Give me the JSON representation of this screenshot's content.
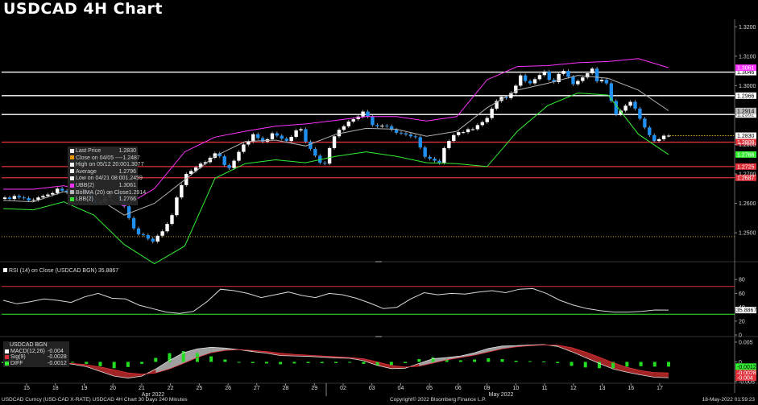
{
  "title": "USDCAD 4H Chart",
  "colors": {
    "background": "#000000",
    "candle_up": "#ffffff",
    "candle_down": "#1f8ff0",
    "bollinger_mid": "#b0b0b0",
    "bollinger_upper": "#ff33ff",
    "bollinger_lower": "#33ee33",
    "resistance_white": "#ffffff",
    "support_red": "#e0303a",
    "last_price_dotted": "#d0a020",
    "rsi_line": "#d8d8d8",
    "rsi_70": "#e0303a",
    "rsi_30": "#33ee33",
    "macd_line": "#aaaaaa",
    "signal_fill": "#c02a2a",
    "hist": "#22dd22"
  },
  "price_legend": [
    {
      "label": "Last Price",
      "value": "1.2830",
      "color": "#ffffff"
    },
    {
      "label": "Close on 04/05 ----",
      "value": "1.2487",
      "color": "#ff9a00"
    },
    {
      "label": "High on 05/12 20:00",
      "value": "1.3077",
      "color": "#ffffff"
    },
    {
      "label": "Average",
      "value": "1.2796",
      "color": "#ffffff"
    },
    {
      "label": "Low on 04/21 08:00",
      "value": "1.2459",
      "color": "#ffffff"
    },
    {
      "label": "UBB(2)",
      "value": "1.3061",
      "color": "#ff33ff"
    },
    {
      "label": "BollMA (20)  on Close",
      "value": "1.2914",
      "color": "#bbbbbb"
    },
    {
      "label": "LBB(2)",
      "value": "1.2766",
      "color": "#33ee33"
    }
  ],
  "rsi_label": "RSI (14)  on Close (USDCAD BGN)  35.8867",
  "macd_legend": {
    "header": "USDCAD BGN",
    "rows": [
      {
        "label": "MACD(12,26)",
        "value": "-0.004",
        "color": "#ffffff"
      },
      {
        "label": "Sig(9)",
        "value": "-0.0028",
        "color": "#e0303a"
      },
      {
        "label": "DIFF",
        "value": "-0.0012",
        "color": "#33ee33"
      }
    ]
  },
  "footer": {
    "left": "USDCAD Curncy (USD-CAD X-RATE) USDCAD 4H Chart 30 Days 240 Minutes",
    "mid": "Copyright© 2022 Bloomberg Finance L.P.",
    "right": "18-May-2022 01:59:23"
  },
  "chart_data": [
    {
      "type": "candlestick",
      "title": "USDCAD 4H Chart",
      "ylim": [
        1.241,
        1.322
      ],
      "y_ticks": [
        "1.2500",
        "1.2600",
        "1.2700",
        "1.2800",
        "1.2900",
        "1.3000",
        "1.3100",
        "1.3200"
      ],
      "x_day_labels": [
        "15",
        "18",
        "19",
        "20",
        "21",
        "22",
        "25",
        "26",
        "27",
        "28",
        "29",
        "02",
        "03",
        "04",
        "05",
        "06",
        "09",
        "10",
        "11",
        "12",
        "13",
        "16",
        "17"
      ],
      "x_month_labels": [
        "Apr 2022",
        "May 2022"
      ],
      "price_tags": [
        {
          "value": 1.3046,
          "text": "1.3046",
          "color": "#ffffff"
        },
        {
          "value": 1.3061,
          "text": "1.3061",
          "color": "#ff33ff"
        },
        {
          "value": 1.2966,
          "text": "1.2966",
          "color": "#ffffff"
        },
        {
          "value": 1.2902,
          "text": "1.2902",
          "color": "#ffffff"
        },
        {
          "value": 1.2914,
          "text": "1.2914",
          "color": "#bbbbbb"
        },
        {
          "value": 1.283,
          "text": "1.2830",
          "color": "#ffffff"
        },
        {
          "value": 1.2808,
          "text": "1.2808",
          "color": "#e0303a"
        },
        {
          "value": 1.2766,
          "text": "1.2766",
          "color": "#33ee33"
        },
        {
          "value": 1.2725,
          "text": "1.2725",
          "color": "#e0303a"
        },
        {
          "value": 1.2687,
          "text": "1.2687",
          "color": "#e0303a"
        }
      ],
      "horizontal_levels": [
        {
          "value": 1.3046,
          "color": "#ffffff",
          "style": "solid"
        },
        {
          "value": 1.2966,
          "color": "#ffffff",
          "style": "solid"
        },
        {
          "value": 1.2902,
          "color": "#ffffff",
          "style": "solid"
        },
        {
          "value": 1.2808,
          "color": "#e0303a",
          "style": "solid"
        },
        {
          "value": 1.2725,
          "color": "#e0303a",
          "style": "solid"
        },
        {
          "value": 1.2687,
          "color": "#e0303a",
          "style": "solid"
        },
        {
          "value": 1.2487,
          "color": "#d0a020",
          "style": "dotted"
        },
        {
          "value": 1.283,
          "color": "#d0a020",
          "style": "dotted-short"
        }
      ],
      "closes": [
        1.262,
        1.2615,
        1.2625,
        1.262,
        1.2618,
        1.261,
        1.2612,
        1.262,
        1.2625,
        1.263,
        1.2635,
        1.265,
        1.2643,
        1.2637,
        1.2632,
        1.264,
        1.265,
        1.2635,
        1.2615,
        1.26,
        1.2605,
        1.262,
        1.264,
        1.2635,
        1.2615,
        1.259,
        1.255,
        1.2515,
        1.2495,
        1.2492,
        1.248,
        1.247,
        1.249,
        1.2505,
        1.253,
        1.256,
        1.262,
        1.2662,
        1.27,
        1.271,
        1.2722,
        1.2735,
        1.274,
        1.2755,
        1.277,
        1.276,
        1.273,
        1.272,
        1.2745,
        1.2775,
        1.28,
        1.281,
        1.2835,
        1.2822,
        1.281,
        1.2818,
        1.2838,
        1.283,
        1.282,
        1.2812,
        1.2826,
        1.2848,
        1.2852,
        1.281,
        1.2785,
        1.2762,
        1.2738,
        1.2735,
        1.2788,
        1.2828,
        1.285,
        1.2862,
        1.2878,
        1.2886,
        1.2895,
        1.2912,
        1.2895,
        1.2866,
        1.2862,
        1.2864,
        1.2862,
        1.285,
        1.284,
        1.2838,
        1.2834,
        1.2828,
        1.2825,
        1.279,
        1.2758,
        1.2752,
        1.2745,
        1.2738,
        1.2788,
        1.2812,
        1.2832,
        1.2842,
        1.2842,
        1.2852,
        1.2852,
        1.2866,
        1.2876,
        1.289,
        1.2922,
        1.2948,
        1.2962,
        1.2958,
        1.2975,
        1.3,
        1.3035,
        1.3016,
        1.3008,
        1.3022,
        1.3036,
        1.3048,
        1.302,
        1.3012,
        1.304,
        1.305,
        1.303,
        1.3005,
        1.3016,
        1.3028,
        1.3042,
        1.3058,
        1.3015,
        1.302,
        1.3008,
        1.2948,
        1.2902,
        1.2915,
        1.2932,
        1.2945,
        1.2922,
        1.2888,
        1.2858,
        1.2832,
        1.2812,
        1.2818,
        1.283,
        1.283
      ],
      "bollinger_mid_approx": [
        1.261,
        1.2605,
        1.264,
        1.2625,
        1.256,
        1.26,
        1.268,
        1.276,
        1.281,
        1.2815,
        1.2795,
        1.2835,
        1.2855,
        1.2852,
        1.2828,
        1.2845,
        1.2925,
        1.2985,
        1.3008,
        1.3035,
        1.3025,
        1.2985,
        1.2915
      ],
      "bollinger_upper_approx": [
        1.2648,
        1.2648,
        1.266,
        1.2635,
        1.259,
        1.265,
        1.2775,
        1.2825,
        1.2845,
        1.2862,
        1.287,
        1.2882,
        1.2895,
        1.2895,
        1.288,
        1.2895,
        1.302,
        1.3065,
        1.3068,
        1.3078,
        1.3082,
        1.3092,
        1.3061
      ],
      "bollinger_lower_approx": [
        1.2582,
        1.2578,
        1.2605,
        1.256,
        1.246,
        1.2395,
        1.2455,
        1.2685,
        1.2735,
        1.2748,
        1.2738,
        1.276,
        1.2775,
        1.276,
        1.2738,
        1.2735,
        1.2725,
        1.2845,
        1.2932,
        1.2975,
        1.2968,
        1.2835,
        1.2766
      ]
    },
    {
      "type": "line",
      "title": "RSI (14) on Close (USDCAD BGN)",
      "ylim": [
        0,
        100
      ],
      "y_ticks": [
        "0",
        "20",
        "40",
        "60",
        "80"
      ],
      "levels": [
        70,
        30
      ],
      "last_value": "35.8867",
      "values": [
        50,
        45,
        48,
        52,
        50,
        47,
        55,
        60,
        53,
        52,
        43,
        38,
        33,
        31,
        34,
        48,
        66,
        64,
        60,
        54,
        58,
        62,
        57,
        54,
        60,
        58,
        53,
        46,
        38,
        40,
        52,
        61,
        58,
        60,
        59,
        62,
        64,
        61,
        66,
        67,
        60,
        50,
        43,
        38,
        35,
        33,
        33,
        34,
        36,
        35.89
      ]
    },
    {
      "type": "line",
      "title": "MACD(12,26)",
      "ylim": [
        -0.005,
        0.006
      ],
      "y_ticks": [
        "0.005",
        "0",
        "-0.005"
      ],
      "last_values": {
        "macd": "-0.004",
        "signal": "-0.0028",
        "diff": "-0.0012"
      },
      "macd": [
        -0.0008,
        -0.0012,
        -0.0006,
        -0.0002,
        -0.0001,
        -0.0006,
        -0.0012,
        -0.0024,
        -0.0036,
        -0.0041,
        -0.0036,
        -0.0018,
        0.0004,
        0.0023,
        0.0033,
        0.0037,
        0.0035,
        0.0031,
        0.0026,
        0.0022,
        0.0016,
        0.0015,
        0.0014,
        0.0012,
        0.001,
        0.0009,
        0.0003,
        -0.0009,
        -0.0017,
        -0.0016,
        -0.0004,
        0.0008,
        0.0011,
        0.0015,
        0.0023,
        0.0034,
        0.004,
        0.0041,
        0.0043,
        0.0044,
        0.0039,
        0.0026,
        0.0011,
        -0.0004,
        -0.0018,
        -0.0026,
        -0.0033,
        -0.0039,
        -0.004
      ],
      "signal": [
        -0.0005,
        -0.0009,
        -0.0008,
        -0.0005,
        -0.0003,
        -0.0004,
        -0.0007,
        -0.0013,
        -0.002,
        -0.0028,
        -0.0031,
        -0.0028,
        -0.0018,
        -0.0004,
        0.0011,
        0.0023,
        0.0029,
        0.0031,
        0.0029,
        0.0026,
        0.0022,
        0.0019,
        0.0017,
        0.0015,
        0.0013,
        0.0011,
        0.0008,
        0.0,
        -0.0009,
        -0.0013,
        -0.0011,
        -0.0003,
        0.0005,
        0.0011,
        0.0017,
        0.0025,
        0.0033,
        0.0038,
        0.0041,
        0.0043,
        0.0042,
        0.0036,
        0.0025,
        0.0012,
        -0.0002,
        -0.0014,
        -0.0022,
        -0.0027,
        -0.0028
      ],
      "diff": [
        -0.0003,
        -0.0003,
        0.0002,
        0.0003,
        0.0002,
        -0.0002,
        -0.0005,
        -0.0011,
        -0.0016,
        -0.0013,
        -0.0005,
        0.001,
        0.0022,
        0.0027,
        0.0022,
        0.0014,
        0.0006,
        0.0,
        -0.0003,
        -0.0004,
        -0.0006,
        -0.0004,
        -0.0003,
        -0.0003,
        -0.0003,
        -0.0002,
        -0.0005,
        -0.0009,
        -0.0008,
        -0.0003,
        0.0007,
        0.0011,
        0.0006,
        0.0004,
        0.0006,
        0.0009,
        0.0007,
        0.0003,
        0.0002,
        0.0001,
        -0.0003,
        -0.001,
        -0.0014,
        -0.0016,
        -0.0016,
        -0.0012,
        -0.0011,
        -0.0012,
        -0.0012
      ]
    }
  ]
}
